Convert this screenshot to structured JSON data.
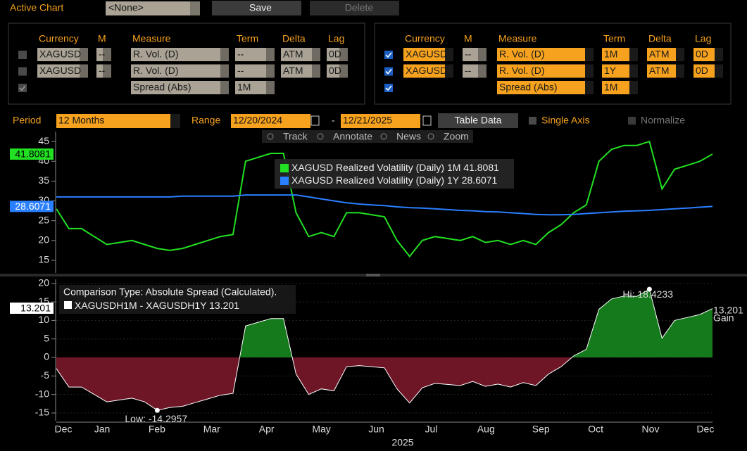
{
  "toolbar": {
    "label": "Active Chart",
    "chart_select": "<None>",
    "save": "Save",
    "delete": "Delete"
  },
  "left_panel": {
    "headers": [
      "Currency",
      "M",
      "Measure",
      "Term",
      "Delta",
      "Lag"
    ],
    "rows": [
      {
        "checked": false,
        "currency": "XAGUSD",
        "m": "--",
        "measure": "R. Vol. (D)",
        "term": "--",
        "delta": "ATM",
        "lag": "0D"
      },
      {
        "checked": false,
        "currency": "XAGUSD",
        "m": "--",
        "measure": "R. Vol. (D)",
        "term": "--",
        "delta": "ATM",
        "lag": "0D"
      },
      {
        "checked": true,
        "measure": "Spread (Abs)",
        "term": "1M"
      }
    ]
  },
  "right_panel": {
    "headers": [
      "Currency",
      "M",
      "Measure",
      "Term",
      "Delta",
      "Lag"
    ],
    "rows": [
      {
        "checked": true,
        "currency": "XAGUSD",
        "m": "--",
        "measure": "R. Vol. (D)",
        "term": "1M",
        "delta": "ATM",
        "lag": "0D"
      },
      {
        "checked": true,
        "currency": "XAGUSD",
        "m": "--",
        "measure": "R. Vol. (D)",
        "term": "1Y",
        "delta": "ATM",
        "lag": "0D"
      },
      {
        "checked": true,
        "measure": "Spread (Abs)",
        "term": "1M"
      }
    ]
  },
  "controls": {
    "period_label": "Period",
    "period": "12 Months",
    "range_label": "Range",
    "range_start": "12/20/2024",
    "range_dash": "-",
    "range_end": "12/21/2025",
    "table_data": "Table Data",
    "single_axis": "Single Axis",
    "normalize": "Normalize"
  },
  "chart_tools": [
    "Track",
    "Annotate",
    "News",
    "Zoom"
  ],
  "chart_data": [
    {
      "type": "line",
      "x_labels": [
        "Dec",
        "Jan",
        "Feb",
        "Mar",
        "Apr",
        "May",
        "Jun",
        "Jul",
        "Aug",
        "Sep",
        "Oct",
        "Nov",
        "Dec"
      ],
      "x_year": "2025",
      "ylim": [
        11.8,
        47.5
      ],
      "yticks": [
        15,
        20,
        25,
        30,
        35,
        40,
        45
      ],
      "grid": false,
      "series": [
        {
          "name": "XAGUSD Realized Volatility (Daily) 1M",
          "color": "#22e022",
          "values": [
            28,
            23,
            23,
            21,
            19,
            19.5,
            20,
            19,
            18,
            17.5,
            18,
            19,
            20,
            21,
            21.5,
            40,
            41,
            42,
            42,
            27,
            21,
            22,
            21,
            27,
            27,
            26.5,
            26,
            20,
            16,
            20,
            21,
            20.5,
            20,
            21,
            19.5,
            20,
            19,
            20,
            19,
            22,
            24,
            27,
            29,
            40,
            43,
            44,
            44,
            45,
            33,
            38,
            39,
            40,
            41.8081
          ]
        },
        {
          "name": "XAGUSD Realized Volatility (Daily) 1Y",
          "color": "#2a7fff",
          "values": [
            31,
            31,
            31,
            31,
            31,
            31,
            31,
            31,
            31,
            31,
            31.2,
            31.2,
            31.2,
            31.2,
            31.2,
            31.5,
            31.5,
            31.5,
            31.5,
            31.5,
            31,
            30.5,
            30,
            29.5,
            29.2,
            29,
            28.8,
            28.5,
            28.3,
            28.2,
            28,
            27.8,
            27.6,
            27.5,
            27.3,
            27.2,
            27,
            26.8,
            26.6,
            26.5,
            26.5,
            26.6,
            26.8,
            27,
            27.2,
            27.4,
            27.5,
            27.6,
            27.8,
            28,
            28.2,
            28.4,
            28.6071
          ]
        }
      ]
    },
    {
      "type": "area",
      "annotation": "Comparison Type: Absolute Spread (Calculated).",
      "ylim": [
        -17.1,
        21.1
      ],
      "yticks": [
        -15,
        -10,
        -5,
        0,
        5,
        10,
        15,
        20
      ],
      "grid": true,
      "positive_color": "#157a1c",
      "negative_color": "#6e1526",
      "high_label": "Hi: 18.4233",
      "low_label": "Low: -14.2957",
      "end_note": "Gain",
      "series": [
        {
          "name": "XAGUSDH1M - XAGUSDH1Y",
          "color": "#ffffff",
          "values": [
            -3,
            -8,
            -8,
            -10,
            -12,
            -11.5,
            -11,
            -12,
            -14.2957,
            -13.5,
            -13.2,
            -12.2,
            -11.2,
            -10.2,
            -9.7,
            8.5,
            9.5,
            10.5,
            10.5,
            -4.5,
            -10,
            -8.5,
            -9,
            -2.5,
            -2.2,
            -2.5,
            -2.8,
            -8.5,
            -12.3,
            -8.2,
            -7,
            -7.3,
            -7.6,
            -6.5,
            -7.8,
            -7.2,
            -8,
            -6.8,
            -7.6,
            -4.5,
            -2.5,
            0.4,
            2.2,
            13,
            15.8,
            16.6,
            16.5,
            18.4233,
            5.2,
            10,
            10.8,
            11.6,
            13.201
          ]
        }
      ]
    }
  ]
}
